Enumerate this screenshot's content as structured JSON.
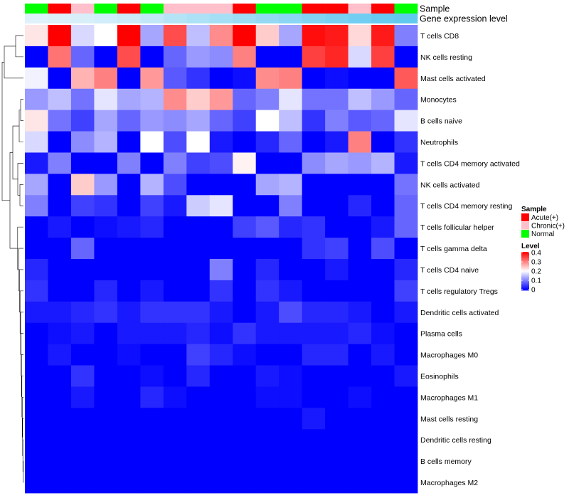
{
  "chart_data": {
    "type": "heatmap",
    "annotation_rows": [
      {
        "name": "Sample",
        "values": [
          "Normal",
          "Acute(+)",
          "Chronic(+)",
          "Normal",
          "Acute(+)",
          "Normal",
          "Chronic(+)",
          "Chronic(+)",
          "Chronic(+)",
          "Acute(+)",
          "Normal",
          "Normal",
          "Acute(+)",
          "Acute(+)",
          "Chronic(+)",
          "Acute(+)",
          "Normal"
        ]
      },
      {
        "name": "Gene expression level",
        "values": [
          0.1,
          0.12,
          0.15,
          0.2,
          0.24,
          0.3,
          0.38,
          0.44,
          0.5,
          0.56,
          0.62,
          0.68,
          0.74,
          0.8,
          0.85,
          0.92,
          0.96
        ]
      }
    ],
    "rows": [
      "T cells CD8",
      "NK cells resting",
      "Mast cells activated",
      "Monocytes",
      "B cells naive",
      "Neutrophils",
      "T cells CD4 memory activated",
      "NK cells activated",
      "T cells CD4 memory resting",
      "T cells follicular helper",
      "T cells gamma delta",
      "T cells CD4 naive",
      "T cells regulatory  Tregs",
      "Dendritic cells activated",
      "Plasma cells",
      "Macrophages M0",
      "Eosinophils",
      "Macrophages M1",
      "Mast cells resting",
      "Dendritic cells resting",
      "B cells memory",
      "Macrophages M2"
    ],
    "values": [
      [
        0.22,
        0.4,
        0.17,
        0.2,
        0.4,
        0.13,
        0.34,
        0.15,
        0.29,
        0.4,
        0.24,
        0.13,
        0.39,
        0.38,
        0.23,
        0.38,
        0.1
      ],
      [
        0.0,
        0.31,
        0.08,
        0.0,
        0.34,
        0.0,
        0.08,
        0.12,
        0.11,
        0.3,
        0.0,
        0.0,
        0.35,
        0.37,
        0.17,
        0.35,
        0.0
      ],
      [
        0.19,
        0.0,
        0.26,
        0.3,
        0.0,
        0.28,
        0.07,
        0.04,
        0.0,
        0.01,
        0.29,
        0.3,
        0.0,
        0.01,
        0.0,
        0.0,
        0.33
      ],
      [
        0.12,
        0.15,
        0.09,
        0.18,
        0.13,
        0.14,
        0.29,
        0.24,
        0.28,
        0.08,
        0.1,
        0.18,
        0.09,
        0.09,
        0.15,
        0.12,
        0.08
      ],
      [
        0.22,
        0.09,
        0.05,
        0.13,
        0.08,
        0.12,
        0.11,
        0.13,
        0.08,
        0.05,
        0.2,
        0.15,
        0.04,
        0.1,
        0.07,
        0.08,
        0.18
      ],
      [
        0.17,
        0.0,
        0.11,
        0.14,
        0.0,
        0.2,
        0.06,
        0.2,
        0.02,
        0.0,
        0.03,
        0.08,
        0.0,
        0.02,
        0.3,
        0.0,
        0.04
      ],
      [
        0.02,
        0.1,
        0.0,
        0.0,
        0.1,
        0.0,
        0.1,
        0.05,
        0.06,
        0.21,
        0.0,
        0.0,
        0.11,
        0.13,
        0.12,
        0.14,
        0.02
      ],
      [
        0.13,
        0.0,
        0.24,
        0.12,
        0.0,
        0.14,
        0.06,
        0.0,
        0.0,
        0.0,
        0.13,
        0.14,
        0.0,
        0.0,
        0.0,
        0.0,
        0.09
      ],
      [
        0.1,
        0.0,
        0.05,
        0.04,
        0.0,
        0.05,
        0.02,
        0.16,
        0.18,
        0.0,
        0.0,
        0.1,
        0.0,
        0.0,
        0.03,
        0.0,
        0.08
      ],
      [
        0.0,
        0.02,
        0.0,
        0.01,
        0.02,
        0.03,
        0.0,
        0.0,
        0.0,
        0.05,
        0.07,
        0.03,
        0.04,
        0.0,
        0.0,
        0.02,
        0.08
      ],
      [
        0.0,
        0.0,
        0.08,
        0.0,
        0.0,
        0.0,
        0.0,
        0.0,
        0.0,
        0.0,
        0.0,
        0.0,
        0.04,
        0.05,
        0.0,
        0.06,
        0.0
      ],
      [
        0.03,
        0.0,
        0.0,
        0.0,
        0.0,
        0.0,
        0.0,
        0.0,
        0.1,
        0.0,
        0.03,
        0.0,
        0.0,
        0.02,
        0.0,
        0.0,
        0.03
      ],
      [
        0.04,
        0.0,
        0.0,
        0.03,
        0.0,
        0.02,
        0.0,
        0.0,
        0.04,
        0.0,
        0.04,
        0.02,
        0.0,
        0.0,
        0.0,
        0.0,
        0.05
      ],
      [
        0.02,
        0.02,
        0.03,
        0.04,
        0.02,
        0.04,
        0.04,
        0.04,
        0.02,
        0.0,
        0.02,
        0.06,
        0.03,
        0.03,
        0.02,
        0.0,
        0.02
      ],
      [
        0.0,
        0.01,
        0.02,
        0.0,
        0.02,
        0.02,
        0.02,
        0.03,
        0.01,
        0.04,
        0.02,
        0.02,
        0.02,
        0.02,
        0.03,
        0.01,
        0.0
      ],
      [
        0.0,
        0.02,
        0.0,
        0.0,
        0.01,
        0.0,
        0.0,
        0.05,
        0.03,
        0.01,
        0.0,
        0.0,
        0.03,
        0.03,
        0.0,
        0.02,
        0.0
      ],
      [
        0.0,
        0.0,
        0.04,
        0.0,
        0.0,
        0.01,
        0.0,
        0.03,
        0.0,
        0.0,
        0.02,
        0.01,
        0.0,
        0.0,
        0.0,
        0.0,
        0.02
      ],
      [
        0.0,
        0.0,
        0.02,
        0.0,
        0.0,
        0.03,
        0.01,
        0.0,
        0.0,
        0.0,
        0.01,
        0.01,
        0.0,
        0.0,
        0.01,
        0.0,
        0.0
      ],
      [
        0.0,
        0.0,
        0.0,
        0.0,
        0.0,
        0.0,
        0.0,
        0.0,
        0.0,
        0.0,
        0.0,
        0.0,
        0.02,
        0.0,
        0.0,
        0.0,
        0.0
      ],
      [
        0.0,
        0.0,
        0.0,
        0.0,
        0.0,
        0.0,
        0.0,
        0.0,
        0.0,
        0.0,
        0.0,
        0.0,
        0.0,
        0.0,
        0.0,
        0.0,
        0.0
      ],
      [
        0.0,
        0.0,
        0.0,
        0.0,
        0.0,
        0.0,
        0.0,
        0.0,
        0.0,
        0.0,
        0.0,
        0.0,
        0.0,
        0.0,
        0.0,
        0.0,
        0.0
      ],
      [
        0.0,
        0.0,
        0.0,
        0.0,
        0.0,
        0.0,
        0.0,
        0.0,
        0.0,
        0.0,
        0.0,
        0.0,
        0.0,
        0.0,
        0.0,
        0.0,
        0.0
      ]
    ],
    "color_scale": {
      "min": 0,
      "max": 0.4,
      "colors": [
        "#0000ff",
        "#ffffff",
        "#ff0000"
      ]
    },
    "annotation_colors": {
      "Acute(+)": "#ff0000",
      "Chronic(+)": "#ffc0cb",
      "Normal": "#00ff00",
      "gene_low": "#eef6fb",
      "gene_high": "#5bc7f0"
    },
    "legend": {
      "sample_title": "Sample",
      "sample_items": [
        "Acute(+)",
        "Chronic(+)",
        "Normal"
      ],
      "level_title": "Level",
      "level_ticks": [
        "0.4",
        "0.3",
        "0.2",
        "0.1",
        "0"
      ],
      "placement": "right"
    },
    "row_dendrogram": true,
    "column_dendrogram": false
  }
}
